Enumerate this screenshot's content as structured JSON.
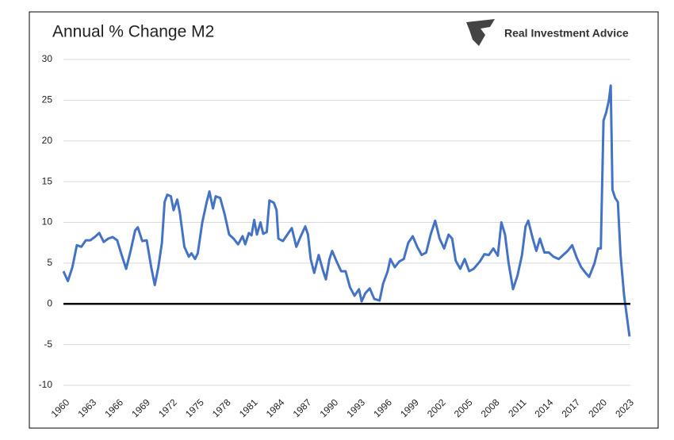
{
  "chart_data": {
    "type": "line",
    "title": "Annual % Change M2",
    "brand": "Real Investment Advice",
    "color": "#4472c4",
    "grid": true,
    "zero_line": true,
    "xlim": [
      1960,
      2023.3
    ],
    "xticks": [
      1960,
      1963,
      1966,
      1969,
      1972,
      1975,
      1978,
      1981,
      1984,
      1987,
      1990,
      1993,
      1996,
      1999,
      2002,
      2005,
      2008,
      2011,
      2014,
      2017,
      2020,
      2023
    ],
    "ylim": [
      -10,
      30
    ],
    "yticks": [
      -10,
      -5,
      0,
      5,
      10,
      15,
      20,
      25,
      30
    ],
    "x": [
      1960,
      1960.5,
      1961,
      1961.5,
      1962,
      1962.5,
      1963,
      1963.5,
      1964,
      1964.5,
      1965,
      1965.5,
      1966,
      1966.5,
      1967,
      1967.5,
      1968,
      1968.3,
      1968.8,
      1969.3,
      1969.8,
      1970.2,
      1970.6,
      1971,
      1971.3,
      1971.6,
      1972,
      1972.3,
      1972.7,
      1973,
      1973.5,
      1974,
      1974.3,
      1974.7,
      1975,
      1975.5,
      1976,
      1976.3,
      1976.7,
      1977,
      1977.5,
      1978,
      1978.5,
      1979,
      1979.5,
      1980,
      1980.3,
      1980.7,
      1981,
      1981.3,
      1981.6,
      1982,
      1982.3,
      1982.7,
      1983,
      1983.5,
      1983.8,
      1984,
      1984.5,
      1985,
      1985.5,
      1986,
      1986.5,
      1987,
      1987.3,
      1987.6,
      1988,
      1988.5,
      1989,
      1989.3,
      1989.7,
      1990,
      1990.5,
      1991,
      1991.5,
      1992,
      1992.5,
      1993,
      1993.3,
      1993.7,
      1994.2,
      1994.7,
      1995.3,
      1995.7,
      1996.2,
      1996.5,
      1997,
      1997.5,
      1998,
      1998.5,
      1999,
      1999.5,
      2000,
      2000.5,
      2001,
      2001.5,
      2002,
      2002.5,
      2003,
      2003.4,
      2003.8,
      2004.3,
      2004.8,
      2005.3,
      2005.8,
      2006.5,
      2007,
      2007.5,
      2008,
      2008.5,
      2008.9,
      2009.3,
      2009.7,
      2010.2,
      2010.7,
      2011.2,
      2011.6,
      2011.9,
      2012.4,
      2012.8,
      2013.2,
      2013.7,
      2014.2,
      2014.7,
      2015.3,
      2015.8,
      2016.3,
      2016.8,
      2017.3,
      2017.8,
      2018.3,
      2018.7,
      2019.3,
      2019.7,
      2020,
      2020.3,
      2020.6,
      2020.9,
      2021.1,
      2021.3,
      2021.6,
      2021.9,
      2022.2,
      2022.6,
      2022.9,
      2023.2
    ],
    "values": [
      4,
      2.8,
      4.5,
      7.2,
      7,
      7.8,
      7.8,
      8.2,
      8.7,
      7.6,
      8,
      8.2,
      7.8,
      6,
      4.3,
      6.5,
      9,
      9.4,
      7.7,
      7.8,
      4.5,
      2.3,
      4.5,
      7.5,
      12.5,
      13.4,
      13.2,
      11.5,
      12.8,
      11.2,
      7,
      5.8,
      6.2,
      5.5,
      6.2,
      10,
      12.5,
      13.8,
      11.7,
      13.2,
      13,
      11,
      8.5,
      8,
      7.3,
      8.3,
      7.3,
      8.7,
      8.4,
      10.3,
      8.5,
      10,
      8.6,
      8.8,
      12.7,
      12.4,
      11.5,
      8,
      7.7,
      8.5,
      9.3,
      7,
      8.3,
      9.5,
      8.5,
      5.5,
      3.8,
      6,
      4,
      3,
      5.5,
      6.5,
      5.2,
      4,
      4,
      2,
      1,
      1.8,
      0.3,
      1.3,
      1.9,
      0.6,
      0.4,
      2.5,
      4,
      5.5,
      4.5,
      5.2,
      5.5,
      7.5,
      8.3,
      7,
      6,
      6.3,
      8.5,
      10.2,
      8,
      6.8,
      8.5,
      8,
      5.3,
      4.3,
      5.5,
      4,
      4.3,
      5.2,
      6.1,
      6,
      6.8,
      5.9,
      10,
      8.5,
      5,
      1.8,
      3.5,
      6,
      9.5,
      10.2,
      8,
      6.5,
      8,
      6.3,
      6.3,
      5.8,
      5.5,
      6,
      6.5,
      7.2,
      5.7,
      4.5,
      3.8,
      3.3,
      5,
      6.8,
      6.8,
      22.5,
      23.5,
      25,
      26.8,
      14,
      13,
      12.5,
      6,
      1,
      -1.5,
      -4
    ]
  }
}
